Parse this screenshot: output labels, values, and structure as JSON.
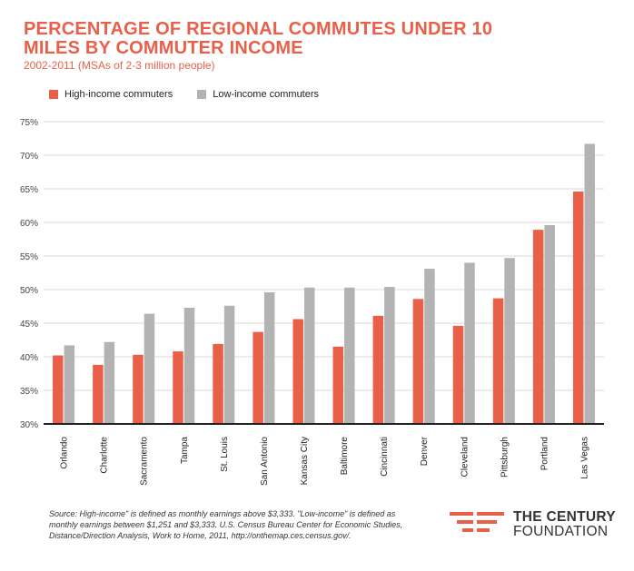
{
  "title": "PERCENTAGE OF REGIONAL COMMUTES UNDER 10 MILES BY COMMUTER INCOME",
  "subtitle": "2002-2011 (MSAs of 2-3 million people)",
  "colors": {
    "accent": "#e8604a",
    "high": "#ea5f48",
    "low": "#b3b3b3",
    "grid": "#d9d9d9",
    "axis": "#222222"
  },
  "source": "Source: High-income\" is defined as monthly earnings above $3,333. \"Low-income\" is defined as monthly earnings between $1,251 and $3,333. U.S. Census Bureau Center for Economic Studies, Distance/Direction Analysis, Work to Home, 2011, http://onthemap.ces.census.gov/.",
  "logo": {
    "line1": "THE CENTURY",
    "line2": "FOUNDATION",
    "icon": "tcf-logo-icon"
  },
  "chart_data": {
    "type": "bar",
    "title": "PERCENTAGE OF REGIONAL COMMUTES UNDER 10 MILES BY COMMUTER INCOME",
    "subtitle": "2002-2011 (MSAs of 2-3 million people)",
    "xlabel": "",
    "ylabel": "",
    "ylim": [
      30,
      75
    ],
    "yticks": [
      30,
      35,
      40,
      45,
      50,
      55,
      60,
      65,
      70,
      75
    ],
    "ytick_labels": [
      "30%",
      "35%",
      "40%",
      "45%",
      "50%",
      "55%",
      "60%",
      "65%",
      "70%",
      "75%"
    ],
    "grid": true,
    "legend_position": "top-left",
    "categories": [
      "Orlando",
      "Charlotte",
      "Sacramento",
      "Tampa",
      "St. Louis",
      "San Antonio",
      "Kansas City",
      "Baltimore",
      "Cincinnati",
      "Denver",
      "Cleveland",
      "Pittsburgh",
      "Portland",
      "Las Vegas"
    ],
    "series": [
      {
        "name": "High-income commuters",
        "values": [
          40.2,
          38.8,
          40.3,
          40.8,
          41.9,
          43.7,
          45.6,
          41.5,
          46.1,
          48.6,
          44.6,
          48.7,
          58.9,
          64.6
        ]
      },
      {
        "name": "Low-income commuters",
        "values": [
          41.7,
          42.2,
          46.4,
          47.3,
          47.6,
          49.6,
          50.3,
          50.3,
          50.4,
          53.1,
          54.0,
          54.7,
          59.6,
          71.7
        ]
      }
    ]
  }
}
